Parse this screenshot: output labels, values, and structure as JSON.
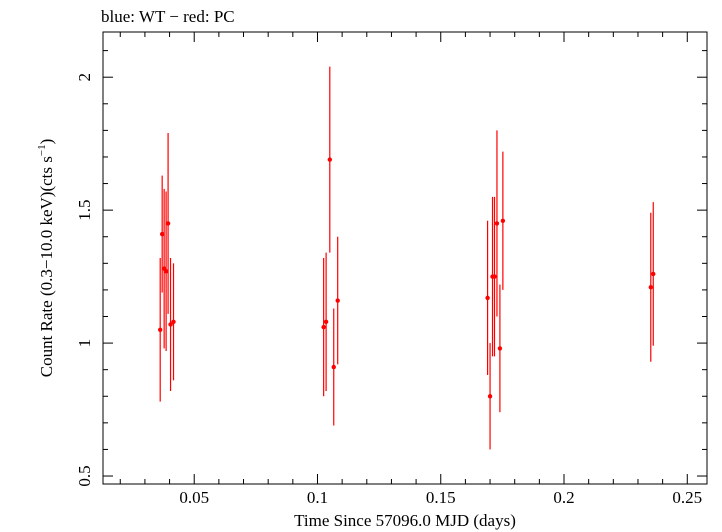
{
  "header": "blue: WT − red: PC",
  "chart_data": {
    "type": "scatter",
    "title": "",
    "xlabel": "Time Since 57096.0 MJD (days)",
    "ylabel_main": "Count Rate (0.3−10.0 keV)(cts s",
    "ylabel_sup": "−1",
    "ylabel_end": ")",
    "xlim": [
      0.013,
      0.258
    ],
    "ylim": [
      0.47,
      2.17
    ],
    "xticks": [
      0.05,
      0.1,
      0.15,
      0.2,
      0.25
    ],
    "xtick_labels": [
      "0.05",
      "0.1",
      "0.15",
      "0.2",
      "0.25"
    ],
    "yticks": [
      0.5,
      1,
      1.5,
      2
    ],
    "ytick_labels": [
      "0.5",
      "1",
      "1.5",
      "2"
    ],
    "grid": false,
    "series": [
      {
        "color": "#ff0000",
        "points": [
          {
            "x": 0.0362,
            "y": 1.05,
            "err": 0.27
          },
          {
            "x": 0.037,
            "y": 1.41,
            "err": 0.22
          },
          {
            "x": 0.0378,
            "y": 1.28,
            "err": 0.3
          },
          {
            "x": 0.0386,
            "y": 1.27,
            "err": 0.3
          },
          {
            "x": 0.0394,
            "y": 1.45,
            "err": 0.34
          },
          {
            "x": 0.0404,
            "y": 1.07,
            "err": 0.25
          },
          {
            "x": 0.0416,
            "y": 1.08,
            "err": 0.22
          },
          {
            "x": 0.1025,
            "y": 1.06,
            "err": 0.26
          },
          {
            "x": 0.1035,
            "y": 1.08,
            "err": 0.26
          },
          {
            "x": 0.105,
            "y": 1.69,
            "err": 0.35
          },
          {
            "x": 0.1066,
            "y": 0.91,
            "err": 0.22
          },
          {
            "x": 0.1082,
            "y": 1.16,
            "err": 0.24
          },
          {
            "x": 0.169,
            "y": 1.17,
            "err": 0.29
          },
          {
            "x": 0.17,
            "y": 0.8,
            "err": 0.2
          },
          {
            "x": 0.171,
            "y": 1.25,
            "err": 0.3
          },
          {
            "x": 0.1718,
            "y": 1.25,
            "err": 0.3
          },
          {
            "x": 0.1728,
            "y": 1.45,
            "err": 0.35
          },
          {
            "x": 0.174,
            "y": 0.98,
            "err": 0.24
          },
          {
            "x": 0.1752,
            "y": 1.46,
            "err": 0.26
          },
          {
            "x": 0.2352,
            "y": 1.21,
            "err": 0.28
          },
          {
            "x": 0.2362,
            "y": 1.26,
            "err": 0.27
          }
        ]
      }
    ]
  }
}
